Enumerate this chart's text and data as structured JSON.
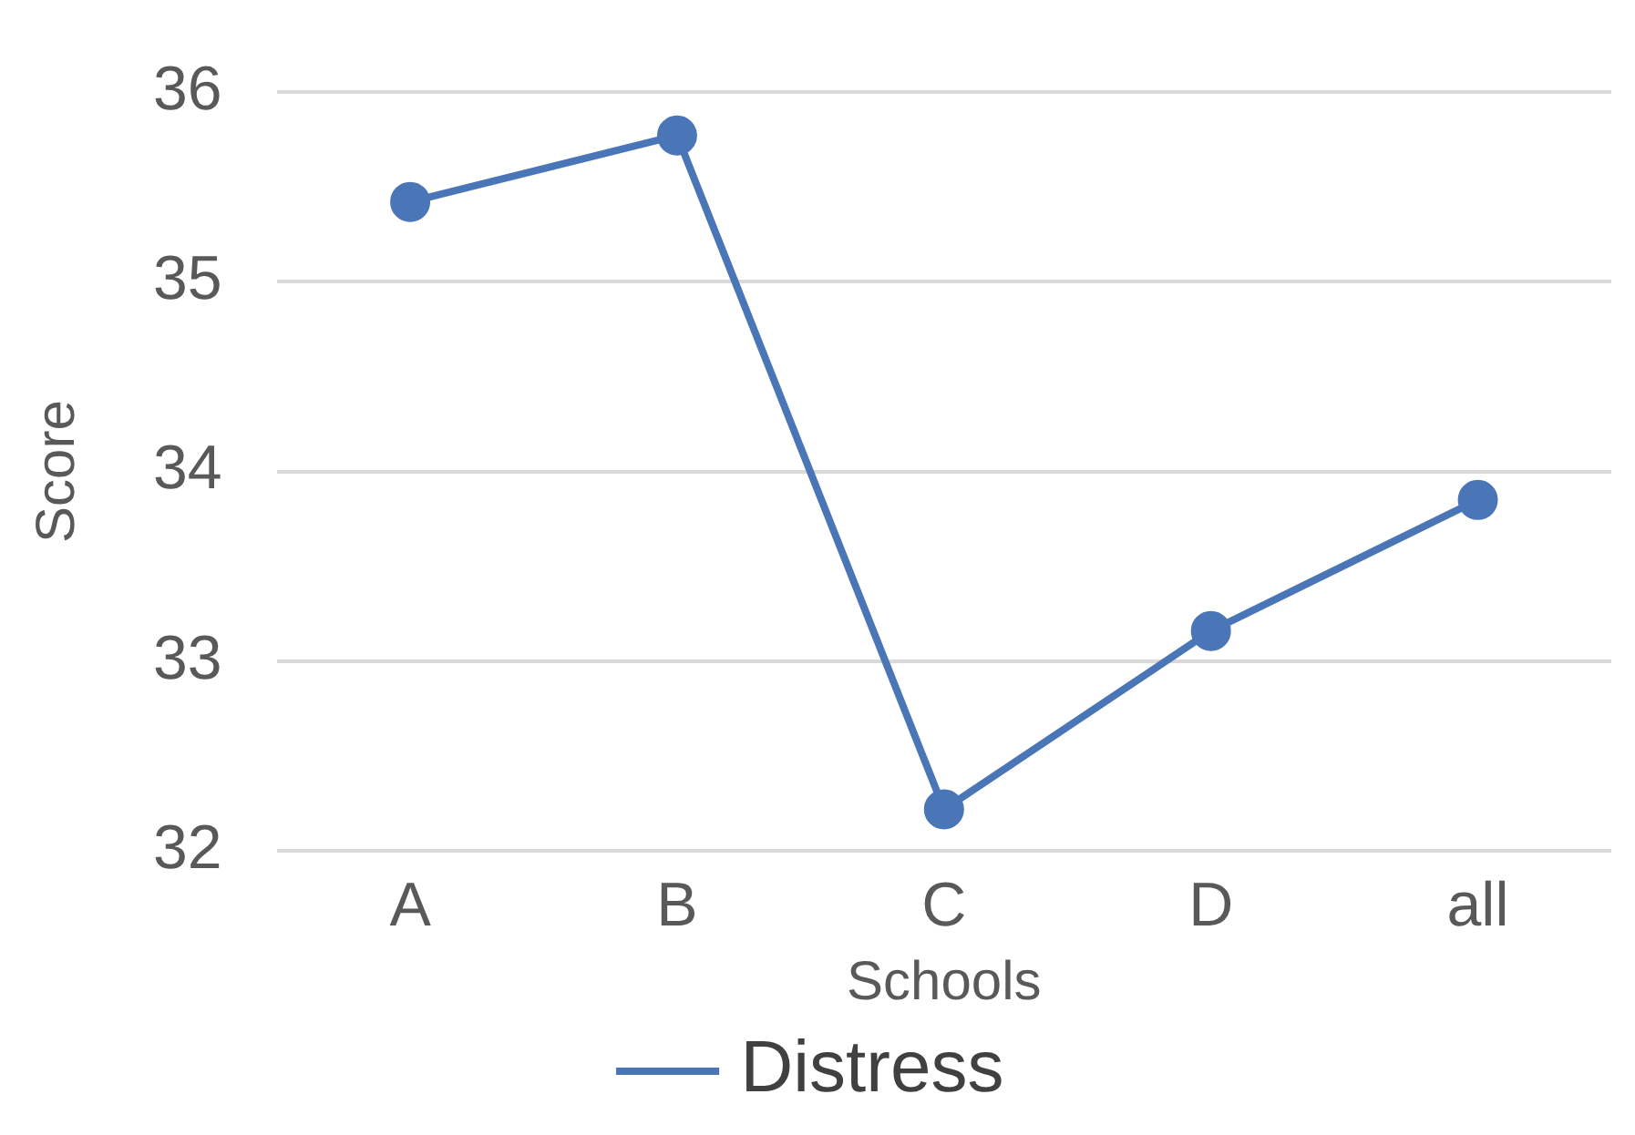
{
  "chart_data": {
    "type": "line",
    "xlabel": "Schools",
    "ylabel": "Score",
    "categories": [
      "A",
      "B",
      "C",
      "D",
      "all"
    ],
    "series": [
      {
        "name": "Distress",
        "color": "#4a76b8",
        "values": [
          35.42,
          35.77,
          32.22,
          33.16,
          33.85
        ]
      }
    ],
    "ylim": [
      32,
      36
    ],
    "yticks": [
      32,
      33,
      34,
      35,
      36
    ],
    "grid": "y",
    "legend": "bottom",
    "marker": "circle",
    "line_style": "solid"
  }
}
